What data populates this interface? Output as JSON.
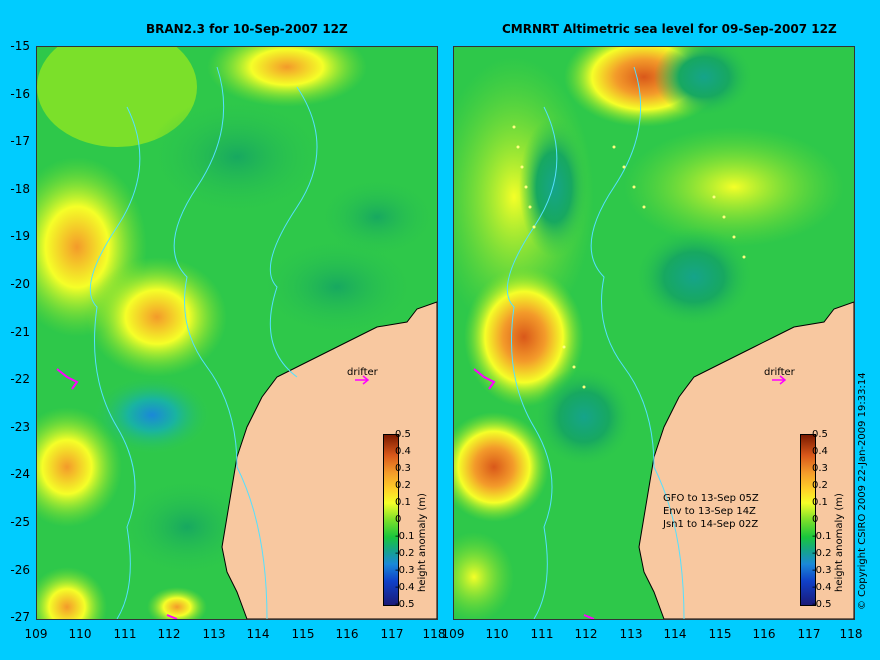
{
  "left_panel": {
    "title": "BRAN2.3 for 10-Sep-2007 12Z",
    "drifter_label": "drifter"
  },
  "right_panel": {
    "title": "CMRNRT Altimetric sea level  for 09-Sep-2007 12Z",
    "drifter_label": "drifter",
    "satellite_notes": [
      "GFO to 13-Sep 05Z",
      "Env to 13-Sep 14Z",
      "Jsn1 to 14-Sep 02Z"
    ]
  },
  "y_axis_labels": [
    "-15",
    "-16",
    "-17",
    "-18",
    "-19",
    "-20",
    "-21",
    "-22",
    "-23",
    "-24",
    "-25",
    "-26",
    "-27"
  ],
  "x_axis_labels": [
    "109",
    "110",
    "111",
    "112",
    "113",
    "114",
    "115",
    "116",
    "117",
    "118"
  ],
  "colorbar": {
    "label": "height anomaly (m)",
    "ticks": [
      "0.5",
      "0.4",
      "0.3",
      "0.2",
      "0.1",
      "0",
      "-0.1",
      "-0.2",
      "-0.3",
      "-0.4",
      "-0.5"
    ]
  },
  "copyright": "© Copyright CSIRO 2009  22-Jan-2009 19:33:14",
  "colors": {
    "background": "#00ccff",
    "land": "#f8c8a0",
    "sea_green": "#2ec84a",
    "anomaly_high": "#d9581a",
    "anomaly_low": "#1a88d8",
    "drifter": "#ff00ff"
  }
}
